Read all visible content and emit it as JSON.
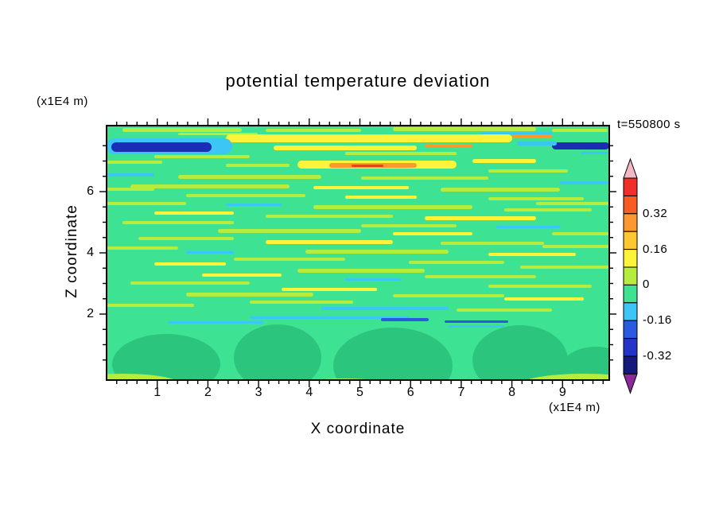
{
  "title": "potential temperature deviation",
  "timestamp": "t=550800 s",
  "axes": {
    "x_label": "X coordinate",
    "x_unit": "(x1E4 m)",
    "z_label": "Z coordinate",
    "z_unit": "(x1E4 m)",
    "x_ticks": [
      "1",
      "2",
      "3",
      "4",
      "5",
      "6",
      "7",
      "8",
      "9"
    ],
    "z_ticks": [
      "2",
      "4",
      "6"
    ]
  },
  "colorbar": {
    "labels": [
      "0.32",
      "0.16",
      "0",
      "-0.16",
      "-0.32"
    ],
    "segments": [
      "#f03028",
      "#f85c22",
      "#fc9830",
      "#ffc832",
      "#fdf43a",
      "#b6ec3e",
      "#3ee293",
      "#3cc6f6",
      "#2a5ae0",
      "#2334c8",
      "#15197e"
    ],
    "arrow_top_color": "#f4b8c4",
    "arrow_bottom_color": "#8c2a9c"
  },
  "chart_data": {
    "type": "contour",
    "title": "potential temperature deviation",
    "xlabel": "X coordinate (x1E4 m)",
    "ylabel": "Z coordinate (x1E4 m)",
    "time_annotation": "t=550800 s",
    "x_range": [
      0,
      9.9
    ],
    "z_range": [
      0,
      8.2
    ],
    "levels": [
      -0.4,
      -0.32,
      -0.24,
      -0.16,
      -0.08,
      0,
      0.08,
      0.16,
      0.24,
      0.32,
      0.4
    ],
    "labeled_levels": [
      0.32,
      0.16,
      0,
      -0.16,
      -0.32
    ],
    "legend_position": "right",
    "grid": false,
    "palette": {
      "g2": "#b6ec3e",
      "yl": "#fdf43a",
      "cy": "#3cc6f6",
      "or": "#fc9830",
      "rd": "#f23b28",
      "bl": "#2a5ae0",
      "nv": "#1c2cb4"
    },
    "field": {
      "background_color": "#3ee293",
      "blob_color": "#2cc57e",
      "streaks": [
        [
          20,
          3,
          150,
          5,
          "g2"
        ],
        [
          200,
          4,
          120,
          4,
          "g2"
        ],
        [
          360,
          2,
          180,
          5,
          "g2"
        ],
        [
          560,
          4,
          70,
          4,
          "g2"
        ],
        [
          470,
          8,
          90,
          3,
          "cy"
        ],
        [
          90,
          9,
          100,
          3,
          "g2"
        ],
        [
          150,
          11,
          360,
          10,
          "yl"
        ],
        [
          90,
          16,
          70,
          4,
          "yl"
        ],
        [
          0,
          16,
          158,
          20,
          "cy"
        ],
        [
          6,
          21,
          126,
          12,
          "nv"
        ],
        [
          400,
          23,
          60,
          5,
          "or"
        ],
        [
          510,
          12,
          50,
          4,
          "or"
        ],
        [
          210,
          25,
          180,
          6,
          "yl"
        ],
        [
          560,
          21,
          72,
          9,
          "nv"
        ],
        [
          516,
          20,
          50,
          5,
          "cy"
        ],
        [
          596,
          33,
          36,
          3,
          "cy"
        ],
        [
          300,
          33,
          140,
          4,
          "g2"
        ],
        [
          60,
          37,
          120,
          4,
          "g2"
        ],
        [
          240,
          44,
          200,
          10,
          "yl"
        ],
        [
          280,
          47,
          110,
          6,
          "or"
        ],
        [
          308,
          49,
          40,
          3,
          "rd"
        ],
        [
          460,
          42,
          80,
          5,
          "yl"
        ],
        [
          150,
          48,
          80,
          4,
          "g2"
        ],
        [
          0,
          44,
          70,
          4,
          "g2"
        ],
        [
          480,
          55,
          100,
          4,
          "g2"
        ],
        [
          0,
          60,
          60,
          4,
          "cy"
        ],
        [
          90,
          62,
          180,
          5,
          "g2"
        ],
        [
          320,
          64,
          160,
          4,
          "g2"
        ],
        [
          570,
          70,
          62,
          4,
          "cy"
        ],
        [
          30,
          74,
          200,
          5,
          "g2"
        ],
        [
          260,
          76,
          120,
          4,
          "yl"
        ],
        [
          420,
          78,
          150,
          5,
          "g2"
        ],
        [
          0,
          78,
          60,
          4,
          "g2"
        ],
        [
          100,
          86,
          150,
          4,
          "g2"
        ],
        [
          300,
          88,
          90,
          4,
          "yl"
        ],
        [
          480,
          90,
          120,
          4,
          "g2"
        ],
        [
          0,
          96,
          100,
          4,
          "g2"
        ],
        [
          540,
          96,
          92,
          4,
          "g2"
        ],
        [
          150,
          98,
          70,
          3,
          "cy"
        ],
        [
          260,
          100,
          200,
          5,
          "g2"
        ],
        [
          500,
          104,
          110,
          4,
          "g2"
        ],
        [
          60,
          108,
          100,
          4,
          "yl"
        ],
        [
          200,
          112,
          160,
          4,
          "g2"
        ],
        [
          400,
          114,
          140,
          5,
          "yl"
        ],
        [
          20,
          120,
          140,
          4,
          "g2"
        ],
        [
          320,
          124,
          120,
          4,
          "g2"
        ],
        [
          490,
          126,
          80,
          3,
          "cy"
        ],
        [
          140,
          130,
          180,
          5,
          "g2"
        ],
        [
          360,
          134,
          100,
          4,
          "yl"
        ],
        [
          560,
          134,
          72,
          4,
          "g2"
        ],
        [
          40,
          140,
          120,
          4,
          "g2"
        ],
        [
          200,
          144,
          160,
          5,
          "yl"
        ],
        [
          420,
          146,
          130,
          4,
          "g2"
        ],
        [
          0,
          152,
          90,
          4,
          "g2"
        ],
        [
          548,
          150,
          84,
          4,
          "g2"
        ],
        [
          250,
          156,
          180,
          5,
          "g2"
        ],
        [
          100,
          158,
          60,
          3,
          "cy"
        ],
        [
          480,
          160,
          110,
          4,
          "yl"
        ],
        [
          160,
          166,
          140,
          4,
          "g2"
        ],
        [
          380,
          170,
          120,
          4,
          "g2"
        ],
        [
          60,
          172,
          90,
          4,
          "yl"
        ],
        [
          520,
          176,
          112,
          4,
          "g2"
        ],
        [
          240,
          180,
          160,
          5,
          "g2"
        ],
        [
          120,
          186,
          100,
          4,
          "yl"
        ],
        [
          400,
          188,
          140,
          4,
          "g2"
        ],
        [
          300,
          192,
          70,
          3,
          "cy"
        ],
        [
          30,
          196,
          150,
          4,
          "g2"
        ],
        [
          480,
          200,
          130,
          4,
          "g2"
        ],
        [
          220,
          204,
          120,
          4,
          "yl"
        ],
        [
          100,
          210,
          160,
          5,
          "g2"
        ],
        [
          360,
          212,
          140,
          4,
          "g2"
        ],
        [
          500,
          216,
          100,
          4,
          "yl"
        ],
        [
          180,
          220,
          130,
          4,
          "g2"
        ],
        [
          0,
          224,
          110,
          4,
          "g2"
        ],
        [
          270,
          228,
          160,
          4,
          "cy"
        ],
        [
          440,
          230,
          120,
          4,
          "g2"
        ],
        [
          180,
          240,
          200,
          3,
          "cy"
        ],
        [
          77,
          246,
          120,
          3,
          "cy"
        ],
        [
          345,
          242,
          60,
          4,
          "bl"
        ],
        [
          425,
          245,
          80,
          3,
          "bl"
        ],
        [
          430,
          251,
          70,
          3,
          "cy"
        ]
      ],
      "blobs": [
        [
          75,
          300,
          68,
          38
        ],
        [
          215,
          292,
          55,
          42
        ],
        [
          360,
          302,
          75,
          48
        ],
        [
          520,
          295,
          60,
          44
        ],
        [
          615,
          308,
          45,
          30
        ]
      ],
      "bottom_arcs": [
        [
          20,
          324,
          70,
          12
        ],
        [
          300,
          328,
          60,
          10
        ],
        [
          600,
          326,
          80,
          14
        ]
      ]
    }
  }
}
